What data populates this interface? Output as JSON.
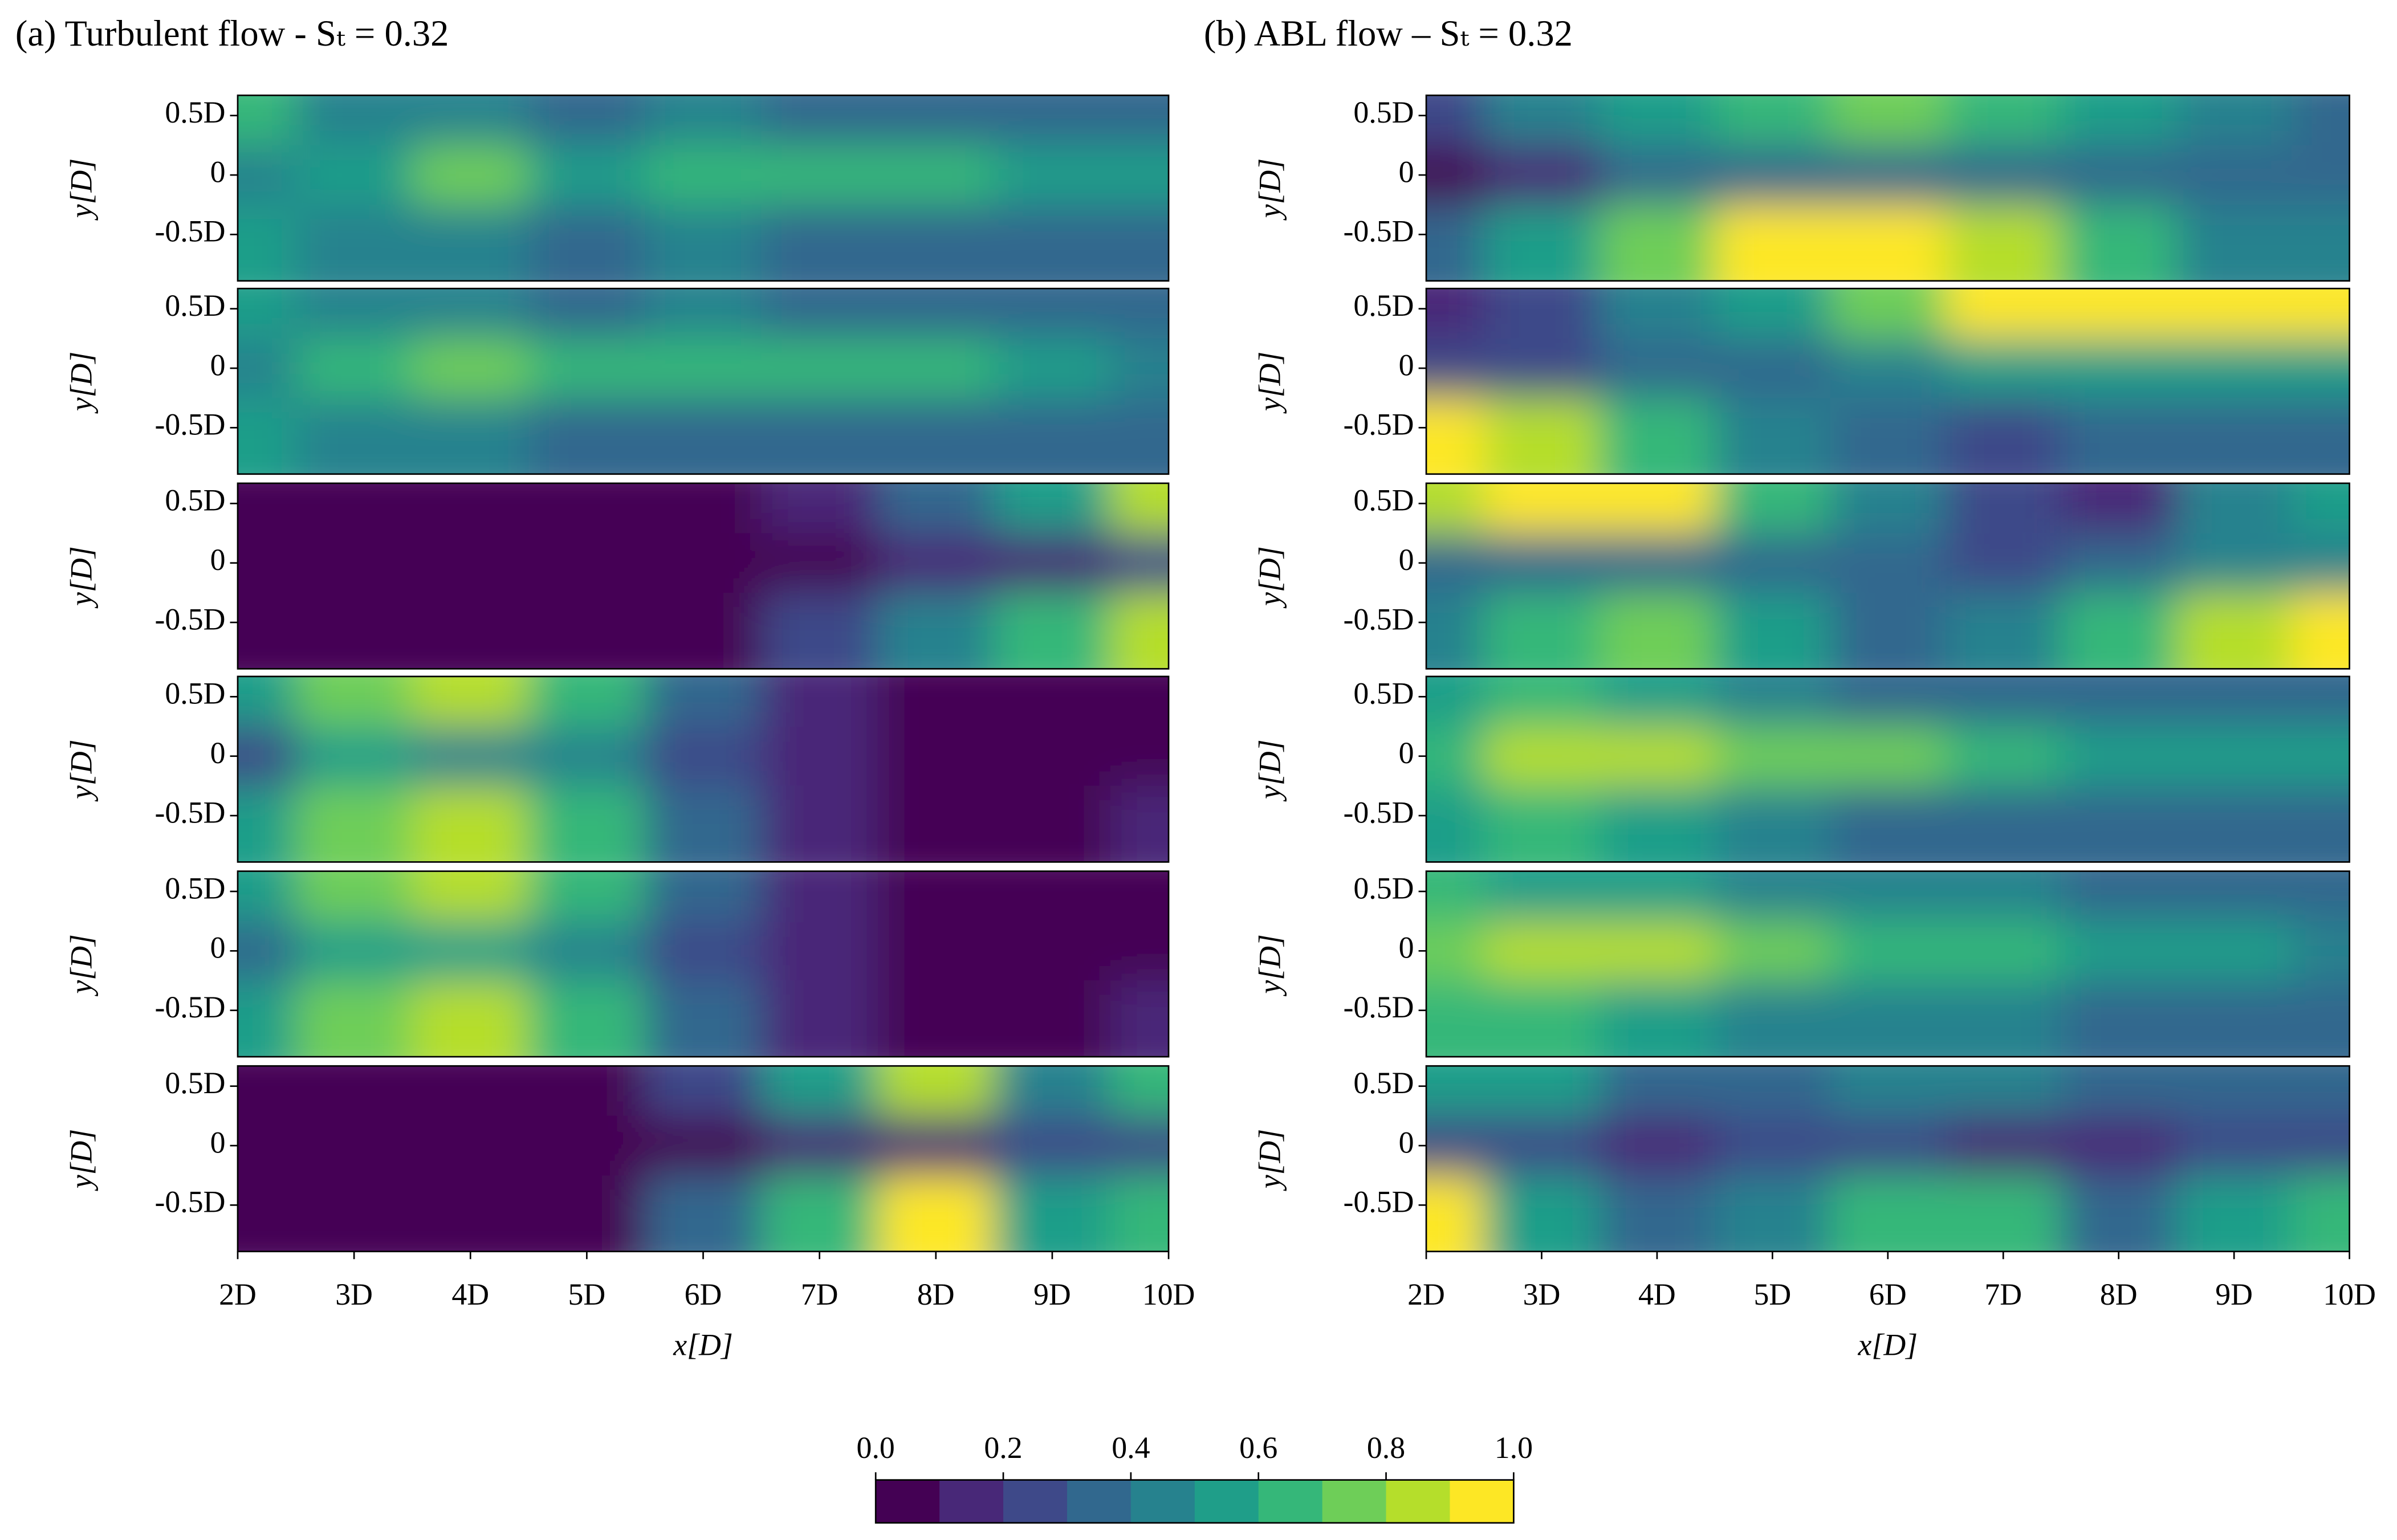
{
  "chart_data": [
    {
      "type": "contour",
      "title": "(a) Turbulent flow - Sₜ = 0.32",
      "xlabel": "x[D]",
      "ylabel": "y[D]",
      "xlim": [
        2,
        10
      ],
      "ylim": [
        -0.89,
        0.67
      ],
      "xticks": [
        {
          "value": 2,
          "label": "2D"
        },
        {
          "value": 3,
          "label": "3D"
        },
        {
          "value": 4,
          "label": "4D"
        },
        {
          "value": 5,
          "label": "5D"
        },
        {
          "value": 6,
          "label": "6D"
        },
        {
          "value": 7,
          "label": "7D"
        },
        {
          "value": 8,
          "label": "8D"
        },
        {
          "value": 9,
          "label": "9D"
        },
        {
          "value": 10,
          "label": "10D"
        }
      ],
      "yticks": [
        {
          "value": 0.5,
          "label": "0.5D"
        },
        0,
        {
          "value": -0.5,
          "label": "-0.5D"
        }
      ],
      "x": [
        2,
        3,
        4,
        5,
        6,
        7,
        8,
        9,
        10
      ],
      "y": [
        0.5,
        0,
        -0.5
      ],
      "fields": [
        [
          [
            0.6,
            0.4,
            0.4,
            0.3,
            0.4,
            0.3,
            0.3,
            0.3,
            0.3
          ],
          [
            0.4,
            0.5,
            0.7,
            0.5,
            0.6,
            0.6,
            0.6,
            0.5,
            0.5
          ],
          [
            0.5,
            0.4,
            0.4,
            0.3,
            0.4,
            0.3,
            0.3,
            0.3,
            0.3
          ]
        ],
        [
          [
            0.5,
            0.4,
            0.4,
            0.3,
            0.4,
            0.3,
            0.3,
            0.3,
            0.3
          ],
          [
            0.4,
            0.6,
            0.7,
            0.6,
            0.6,
            0.6,
            0.6,
            0.5,
            0.4
          ],
          [
            0.5,
            0.4,
            0.4,
            0.3,
            0.3,
            0.3,
            0.3,
            0.3,
            0.3
          ]
        ],
        [
          [
            0,
            0,
            0,
            0,
            0,
            0.1,
            0.3,
            0.5,
            0.8
          ],
          [
            0,
            0,
            0,
            0,
            0,
            0,
            0.1,
            0.1,
            0.2
          ],
          [
            0,
            0,
            0,
            0,
            0,
            0.2,
            0.4,
            0.6,
            0.8
          ]
        ],
        [
          [
            0.5,
            0.7,
            0.8,
            0.6,
            0.3,
            0.1,
            0,
            0,
            0
          ],
          [
            0.2,
            0.5,
            0.4,
            0.4,
            0.2,
            0.1,
            0,
            0,
            0
          ],
          [
            0.5,
            0.7,
            0.8,
            0.6,
            0.3,
            0.1,
            0,
            0,
            0.1
          ]
        ],
        [
          [
            0.5,
            0.7,
            0.8,
            0.6,
            0.3,
            0.1,
            0,
            0,
            0
          ],
          [
            0.3,
            0.5,
            0.5,
            0.4,
            0.2,
            0.1,
            0,
            0,
            0
          ],
          [
            0.5,
            0.7,
            0.8,
            0.6,
            0.3,
            0.1,
            0,
            0,
            0.1
          ]
        ],
        [
          [
            0,
            0,
            0,
            0,
            0.2,
            0.5,
            0.8,
            0.4,
            0.6
          ],
          [
            0,
            0,
            0,
            0,
            0,
            0.1,
            0.1,
            0.2,
            0.2
          ],
          [
            0,
            0,
            0,
            0,
            0.3,
            0.6,
            0.9,
            0.5,
            0.6
          ]
        ]
      ]
    },
    {
      "type": "contour",
      "title": "(b) ABL flow – Sₜ = 0.32",
      "xlabel": "x[D]",
      "ylabel": "y[D]",
      "xlim": [
        2,
        10
      ],
      "ylim": [
        -0.89,
        0.67
      ],
      "xticks": [
        {
          "value": 2,
          "label": "2D"
        },
        {
          "value": 3,
          "label": "3D"
        },
        {
          "value": 4,
          "label": "4D"
        },
        {
          "value": 5,
          "label": "5D"
        },
        {
          "value": 6,
          "label": "6D"
        },
        {
          "value": 7,
          "label": "7D"
        },
        {
          "value": 8,
          "label": "8D"
        },
        {
          "value": 9,
          "label": "9D"
        },
        {
          "value": 10,
          "label": "10D"
        }
      ],
      "yticks": [
        {
          "value": 0.5,
          "label": "0.5D"
        },
        0,
        {
          "value": -0.5,
          "label": "-0.5D"
        }
      ],
      "x": [
        2,
        3,
        4,
        5,
        6,
        7,
        8,
        9,
        10
      ],
      "y": [
        0.5,
        0,
        -0.5
      ],
      "fields": [
        [
          [
            0.2,
            0.4,
            0.5,
            0.6,
            0.7,
            0.6,
            0.5,
            0.4,
            0.3
          ],
          [
            0,
            0.1,
            0.3,
            0.3,
            0.3,
            0.3,
            0.3,
            0.3,
            0.3
          ],
          [
            0.3,
            0.5,
            0.7,
            0.9,
            0.9,
            0.8,
            0.6,
            0.4,
            0.4
          ]
        ],
        [
          [
            0.1,
            0.2,
            0.4,
            0.5,
            0.7,
            0.9,
            1.0,
            1.0,
            0.9
          ],
          [
            0.2,
            0.2,
            0.3,
            0.3,
            0.4,
            0.5,
            0.5,
            0.5,
            0.5
          ],
          [
            0.9,
            0.8,
            0.6,
            0.4,
            0.3,
            0.2,
            0.3,
            0.3,
            0.3
          ]
        ],
        [
          [
            0.8,
            0.9,
            0.9,
            0.6,
            0.4,
            0.2,
            0.1,
            0.4,
            0.5
          ],
          [
            0.3,
            0.3,
            0.3,
            0.3,
            0.3,
            0.2,
            0.3,
            0.4,
            0.4
          ],
          [
            0.4,
            0.6,
            0.7,
            0.5,
            0.3,
            0.4,
            0.6,
            0.8,
            0.9
          ]
        ],
        [
          [
            0.5,
            0.6,
            0.5,
            0.4,
            0.3,
            0.3,
            0.3,
            0.3,
            0.3
          ],
          [
            0.6,
            0.8,
            0.8,
            0.7,
            0.7,
            0.6,
            0.5,
            0.5,
            0.5
          ],
          [
            0.5,
            0.6,
            0.5,
            0.4,
            0.3,
            0.3,
            0.3,
            0.3,
            0.3
          ]
        ],
        [
          [
            0.6,
            0.5,
            0.5,
            0.4,
            0.4,
            0.4,
            0.3,
            0.3,
            0.3
          ],
          [
            0.7,
            0.8,
            0.8,
            0.7,
            0.6,
            0.6,
            0.5,
            0.5,
            0.4
          ],
          [
            0.6,
            0.6,
            0.5,
            0.4,
            0.4,
            0.4,
            0.3,
            0.3,
            0.3
          ]
        ],
        [
          [
            0.5,
            0.5,
            0.3,
            0.3,
            0.4,
            0.4,
            0.3,
            0.3,
            0.3
          ],
          [
            0.2,
            0.2,
            0.1,
            0.2,
            0.2,
            0.1,
            0.1,
            0.2,
            0.2
          ],
          [
            0.9,
            0.5,
            0.3,
            0.4,
            0.6,
            0.6,
            0.3,
            0.5,
            0.6
          ]
        ]
      ]
    }
  ],
  "colorbar": {
    "lim": [
      0,
      1
    ],
    "ticks": [
      {
        "value": 0,
        "label": "0.0"
      },
      {
        "value": 0.2,
        "label": "0.2"
      },
      {
        "value": 0.4,
        "label": "0.4"
      },
      {
        "value": 0.6,
        "label": "0.6"
      },
      {
        "value": 0.8,
        "label": "0.8"
      },
      {
        "value": 1,
        "label": "1.0"
      }
    ],
    "colors": [
      "#440154",
      "#482878",
      "#3e4989",
      "#31688e",
      "#26828e",
      "#1f9e89",
      "#35b779",
      "#6ece58",
      "#b5de2b",
      "#fde725"
    ]
  }
}
